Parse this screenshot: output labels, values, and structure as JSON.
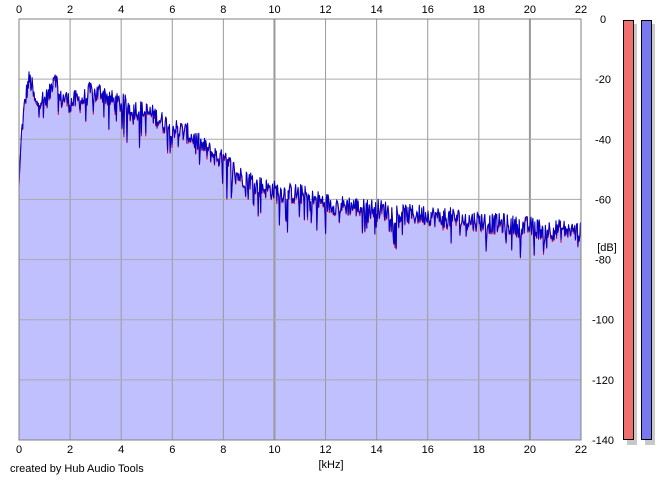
{
  "credit": "created by Hub Audio Tools",
  "chart_data": {
    "type": "area",
    "xlabel": "[kHz]",
    "ylabel": "[dB]",
    "xlim": [
      0,
      22
    ],
    "ylim": [
      -140,
      0
    ],
    "x_ticks": [
      0,
      2,
      4,
      6,
      8,
      10,
      12,
      14,
      16,
      18,
      20,
      22
    ],
    "y_ticks": [
      0,
      -20,
      -40,
      -60,
      -80,
      -100,
      -120,
      -140
    ],
    "grid": true,
    "fill_color": "#c0c0ff",
    "series": [
      {
        "line_color": "#0000c8",
        "secondary_line_color": "#c00040",
        "x": [
          0,
          0.1,
          0.2,
          0.3,
          0.4,
          0.5,
          0.6,
          0.7,
          0.8,
          1.0,
          1.2,
          1.4,
          1.5,
          1.6,
          1.8,
          2.0,
          2.2,
          2.5,
          2.8,
          3.0,
          3.2,
          3.5,
          3.8,
          4.0,
          4.3,
          4.6,
          5.0,
          5.3,
          5.6,
          6.0,
          6.3,
          6.6,
          7.0,
          7.3,
          7.6,
          8.0,
          8.3,
          8.6,
          9.0,
          9.3,
          9.6,
          10.0,
          10.5,
          11.0,
          11.5,
          12.0,
          12.5,
          13.0,
          13.5,
          14.0,
          14.5,
          15.0,
          15.5,
          16.0,
          16.5,
          17.0,
          17.5,
          18.0,
          18.5,
          19.0,
          19.5,
          20.0,
          20.5,
          21.0,
          21.5,
          22.0
        ],
        "values": [
          -55,
          -38,
          -30,
          -24,
          -20,
          -22,
          -27,
          -29,
          -26,
          -27,
          -25,
          -17,
          -22,
          -27,
          -26,
          -28,
          -27,
          -27,
          -24,
          -25,
          -24,
          -26,
          -28,
          -28,
          -29,
          -30,
          -31,
          -32,
          -34,
          -36,
          -37,
          -38,
          -41,
          -43,
          -45,
          -47,
          -49,
          -52,
          -53,
          -55,
          -56,
          -57,
          -58,
          -58,
          -60,
          -61,
          -62,
          -62,
          -63,
          -63,
          -64,
          -65,
          -65,
          -65,
          -66,
          -66,
          -67,
          -67,
          -68,
          -68,
          -69,
          -69,
          -70,
          -70,
          -70,
          -71
        ]
      }
    ]
  }
}
